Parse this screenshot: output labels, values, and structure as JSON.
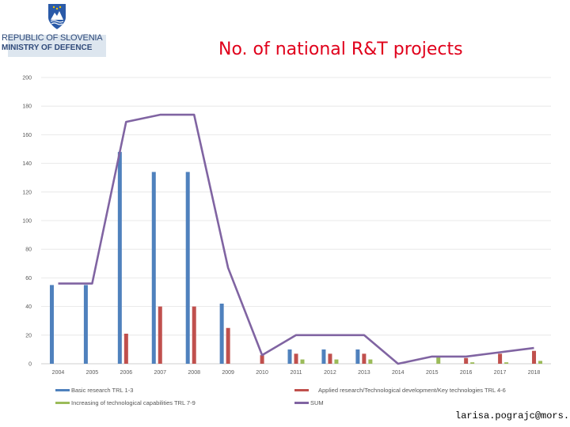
{
  "header": {
    "org_line1": "REPUBLIC OF SLOVENIA",
    "org_line2": "MINISTRY OF DEFENCE",
    "logo_icon": "slovenian-coat-of-arms-icon"
  },
  "chart_data": {
    "type": "bar",
    "title": "No. of national R&T projects",
    "xlabel": "",
    "ylabel": "",
    "ylim": [
      0,
      200
    ],
    "yticks": [
      0,
      20,
      40,
      60,
      80,
      100,
      120,
      140,
      160,
      180,
      200
    ],
    "categories": [
      "2004",
      "2005",
      "2006",
      "2007",
      "2008",
      "2009",
      "2010",
      "2011",
      "2012",
      "2013",
      "2014",
      "2015",
      "2016",
      "2017",
      "2018"
    ],
    "series": [
      {
        "name": "Basic research TRL 1-3",
        "type": "bar",
        "color": "#4f81bd",
        "values": [
          55,
          55,
          148,
          134,
          134,
          42,
          0,
          10,
          10,
          10,
          0,
          0,
          0,
          0,
          0
        ]
      },
      {
        "name": "Applied research/Technological development/Key technologies TRL 4-6",
        "type": "bar",
        "color": "#c0504d",
        "values": [
          0,
          0,
          21,
          40,
          40,
          25,
          6,
          7,
          7,
          7,
          0,
          0,
          4,
          7,
          9
        ]
      },
      {
        "name": "Increasing of technological capabilities TRL 7-9",
        "type": "bar",
        "color": "#9bbb59",
        "values": [
          0,
          0,
          0,
          0,
          0,
          0,
          0,
          3,
          3,
          3,
          0,
          5,
          1,
          1,
          2
        ]
      },
      {
        "name": "SUM",
        "type": "line",
        "color": "#8064a2",
        "values": [
          56,
          56,
          169,
          174,
          174,
          67,
          6,
          20,
          20,
          20,
          0,
          5,
          5,
          8,
          11
        ]
      }
    ],
    "grid": true,
    "legend": "bottom"
  },
  "footer": {
    "email": "larisa.pograjc@mors.si"
  }
}
